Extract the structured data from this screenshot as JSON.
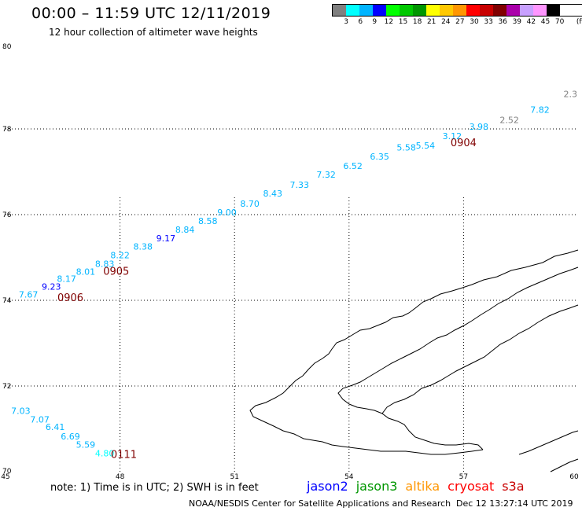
{
  "header": {
    "title": "00:00 – 11:59 UTC 12/11/2019",
    "subtitle": "12 hour collection of altimeter wave heights"
  },
  "legend": {
    "unit": "(ft)",
    "bins": [
      {
        "label": "3",
        "color": "#808080"
      },
      {
        "label": "6",
        "color": "#00ffff"
      },
      {
        "label": "9",
        "color": "#00b4ff"
      },
      {
        "label": "12",
        "color": "#0000ff"
      },
      {
        "label": "15",
        "color": "#00ff00"
      },
      {
        "label": "18",
        "color": "#00c800"
      },
      {
        "label": "21",
        "color": "#009600"
      },
      {
        "label": "24",
        "color": "#ffff00"
      },
      {
        "label": "27",
        "color": "#ffc800"
      },
      {
        "label": "30",
        "color": "#ff9600"
      },
      {
        "label": "33",
        "color": "#ff0000"
      },
      {
        "label": "36",
        "color": "#c80000"
      },
      {
        "label": "39",
        "color": "#800000"
      },
      {
        "label": "42",
        "color": "#aa00aa"
      },
      {
        "label": "45",
        "color": "#c8a0ff"
      },
      {
        "label": "70",
        "color": "#ff96ff"
      },
      {
        "label": "",
        "color": "#000000"
      }
    ]
  },
  "map": {
    "lon_range": [
      45,
      60
    ],
    "lat_range": [
      70,
      80
    ],
    "lon_ticks": [
      "45",
      "48",
      "51",
      "54",
      "57",
      "60"
    ],
    "lat_ticks": [
      "70",
      "72",
      "74",
      "76",
      "78",
      "80"
    ],
    "track_a": [
      {
        "lon": 45.6,
        "lat": 74.06,
        "value": "7.67",
        "color": "#00b4ff"
      },
      {
        "lon": 46.2,
        "lat": 74.25,
        "value": "9.23",
        "color": "#0000ff"
      },
      {
        "lon": 46.6,
        "lat": 74.43,
        "value": "8.17",
        "color": "#00b4ff"
      },
      {
        "lon": 47.1,
        "lat": 74.6,
        "value": "8.01",
        "color": "#00b4ff"
      },
      {
        "lon": 47.6,
        "lat": 74.78,
        "value": "8.83",
        "color": "#00b4ff"
      },
      {
        "lon": 48.0,
        "lat": 74.98,
        "value": "8.22",
        "color": "#00b4ff"
      },
      {
        "lon": 48.6,
        "lat": 75.18,
        "value": "8.38",
        "color": "#00b4ff"
      },
      {
        "lon": 49.2,
        "lat": 75.38,
        "value": "9.17",
        "color": "#0000ff"
      },
      {
        "lon": 49.7,
        "lat": 75.58,
        "value": "8.84",
        "color": "#00b4ff"
      },
      {
        "lon": 50.3,
        "lat": 75.78,
        "value": "8.58",
        "color": "#00b4ff"
      },
      {
        "lon": 50.8,
        "lat": 75.98,
        "value": "9.00",
        "color": "#00b4ff"
      },
      {
        "lon": 51.4,
        "lat": 76.18,
        "value": "8.70",
        "color": "#00b4ff"
      },
      {
        "lon": 52.0,
        "lat": 76.42,
        "value": "8.43",
        "color": "#00b4ff"
      },
      {
        "lon": 52.7,
        "lat": 76.62,
        "value": "7.33",
        "color": "#00b4ff"
      },
      {
        "lon": 53.4,
        "lat": 76.86,
        "value": "7.32",
        "color": "#00b4ff"
      },
      {
        "lon": 54.1,
        "lat": 77.06,
        "value": "6.52",
        "color": "#00b4ff"
      },
      {
        "lon": 54.8,
        "lat": 77.28,
        "value": "6.35",
        "color": "#00b4ff"
      },
      {
        "lon": 55.5,
        "lat": 77.5,
        "value": "5.58",
        "color": "#00b4ff"
      },
      {
        "lon": 56.0,
        "lat": 77.54,
        "value": "5.54",
        "color": "#00b4ff"
      },
      {
        "lon": 56.7,
        "lat": 77.76,
        "value": "3.12",
        "color": "#00b4ff"
      },
      {
        "lon": 57.4,
        "lat": 77.98,
        "value": "3.98",
        "color": "#00b4ff"
      },
      {
        "lon": 58.2,
        "lat": 78.14,
        "value": "2.52",
        "color": "#808080"
      },
      {
        "lon": 59.0,
        "lat": 78.38,
        "value": "7.82",
        "color": "#00b4ff"
      },
      {
        "lon": 59.8,
        "lat": 78.74,
        "value": "2.3",
        "color": "#808080"
      }
    ],
    "track_b": [
      {
        "lon": 45.4,
        "lat": 71.35,
        "value": "7.03",
        "color": "#00b4ff"
      },
      {
        "lon": 45.9,
        "lat": 71.15,
        "value": "7.07",
        "color": "#00b4ff"
      },
      {
        "lon": 46.3,
        "lat": 70.97,
        "value": "6.41",
        "color": "#00b4ff"
      },
      {
        "lon": 46.7,
        "lat": 70.75,
        "value": "6.69",
        "color": "#00b4ff"
      },
      {
        "lon": 47.1,
        "lat": 70.56,
        "value": "5.59",
        "color": "#00b4ff"
      },
      {
        "lon": 47.6,
        "lat": 70.36,
        "value": "4.80",
        "color": "#00ffff"
      }
    ],
    "times": [
      {
        "lon": 57.0,
        "lat": 77.6,
        "text": "0904",
        "color": "#800000"
      },
      {
        "lon": 47.9,
        "lat": 74.6,
        "text": "0905",
        "color": "#800000"
      },
      {
        "lon": 46.7,
        "lat": 73.98,
        "text": "0906",
        "color": "#800000"
      },
      {
        "lon": 48.1,
        "lat": 70.32,
        "text": "0111",
        "color": "#ff9600"
      }
    ]
  },
  "footer": {
    "note": "note: 1) Time is in UTC; 2) SWH is in feet",
    "missions": [
      {
        "name": "jason2",
        "color": "#0000ff"
      },
      {
        "name": "jason3",
        "color": "#009600"
      },
      {
        "name": "altika",
        "color": "#ff9600"
      },
      {
        "name": "cryosat",
        "color": "#ff0000"
      },
      {
        "name": "s3a",
        "color": "#c80000"
      }
    ],
    "credit": "NOAA/NESDIS Center for Satellite Applications and Research",
    "timestamp": "Dec 12 13:27:14 UTC 2019"
  }
}
